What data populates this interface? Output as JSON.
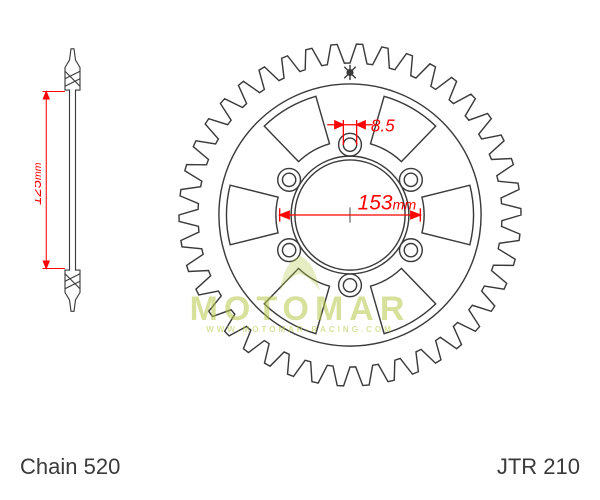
{
  "diagram": {
    "type": "engineering-drawing",
    "part_label": "JTR 210",
    "chain_label": "Chain 520",
    "dimensions": {
      "bolt_circle_diameter": {
        "value": "153",
        "unit": "mm"
      },
      "side_height": {
        "value": "125",
        "unit": "mm"
      },
      "bolt_hole_diameter": {
        "value": "8.5",
        "unit": ""
      }
    },
    "colors": {
      "outline": "#3a3a3a",
      "dimension": "#ff0000",
      "fill_light": "#ffffff",
      "watermark": "#b8c94a",
      "text": "#3a3a3a"
    },
    "stroke_widths": {
      "outline": 1.5,
      "dimension": 1.4
    },
    "font": {
      "label_size": 22,
      "dim_size": 20
    },
    "sprocket": {
      "teeth_count": 42,
      "outer_radius": 180,
      "root_radius": 160,
      "hub_outer": 138,
      "hub_inner": 60,
      "bolt_holes": 6,
      "bolt_circle_r": 74,
      "bolt_hole_r": 7,
      "cutout_inner": 78,
      "cutout_outer": 130
    },
    "watermark": {
      "main": "MOTOMAR",
      "sub": "WWW.MOTOMAR-RACING.COM"
    }
  }
}
